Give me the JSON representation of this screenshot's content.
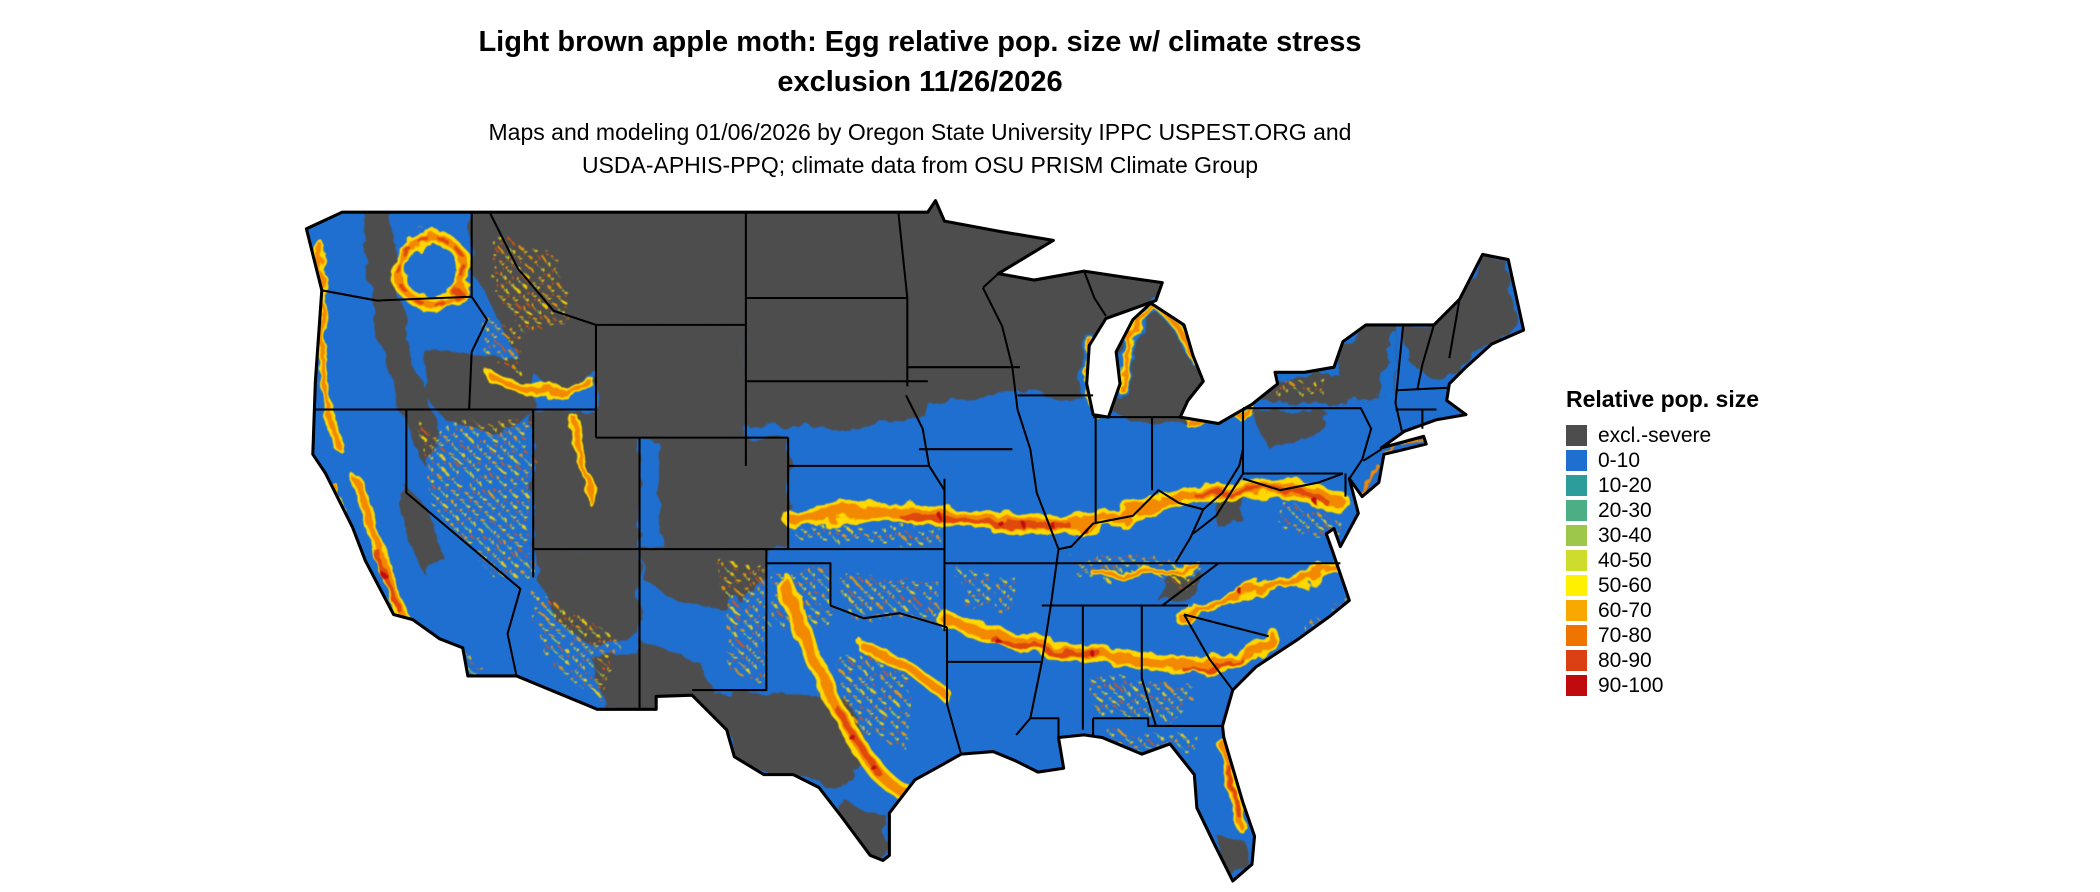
{
  "header": {
    "title_line1": "Light brown apple moth: Egg relative pop. size w/ climate stress",
    "title_line2": "exclusion 11/26/2026",
    "subtitle_line1": "Maps and modeling 01/06/2026 by Oregon State University IPPC USPEST.ORG and",
    "subtitle_line2": "USDA-APHIS-PPQ; climate data from OSU PRISM Climate Group"
  },
  "map": {
    "background": "#FFFFFF",
    "land_base_color": "#1F6FD0",
    "excluded_color": "#4D4D4D",
    "boundary_color": "#000000"
  },
  "legend": {
    "title": "Relative pop. size",
    "items": [
      {
        "label": "excl.-severe",
        "color": "#4D4D4D"
      },
      {
        "label": "0-10",
        "color": "#1F6FD0"
      },
      {
        "label": "10-20",
        "color": "#2C9D9B"
      },
      {
        "label": "20-30",
        "color": "#4BAE84"
      },
      {
        "label": "30-40",
        "color": "#9DC74B"
      },
      {
        "label": "40-50",
        "color": "#CEDC2E"
      },
      {
        "label": "50-60",
        "color": "#FFF000"
      },
      {
        "label": "60-70",
        "color": "#F9A800"
      },
      {
        "label": "70-80",
        "color": "#EF7400"
      },
      {
        "label": "80-90",
        "color": "#DB4014"
      },
      {
        "label": "90-100",
        "color": "#C10A0E"
      }
    ]
  }
}
